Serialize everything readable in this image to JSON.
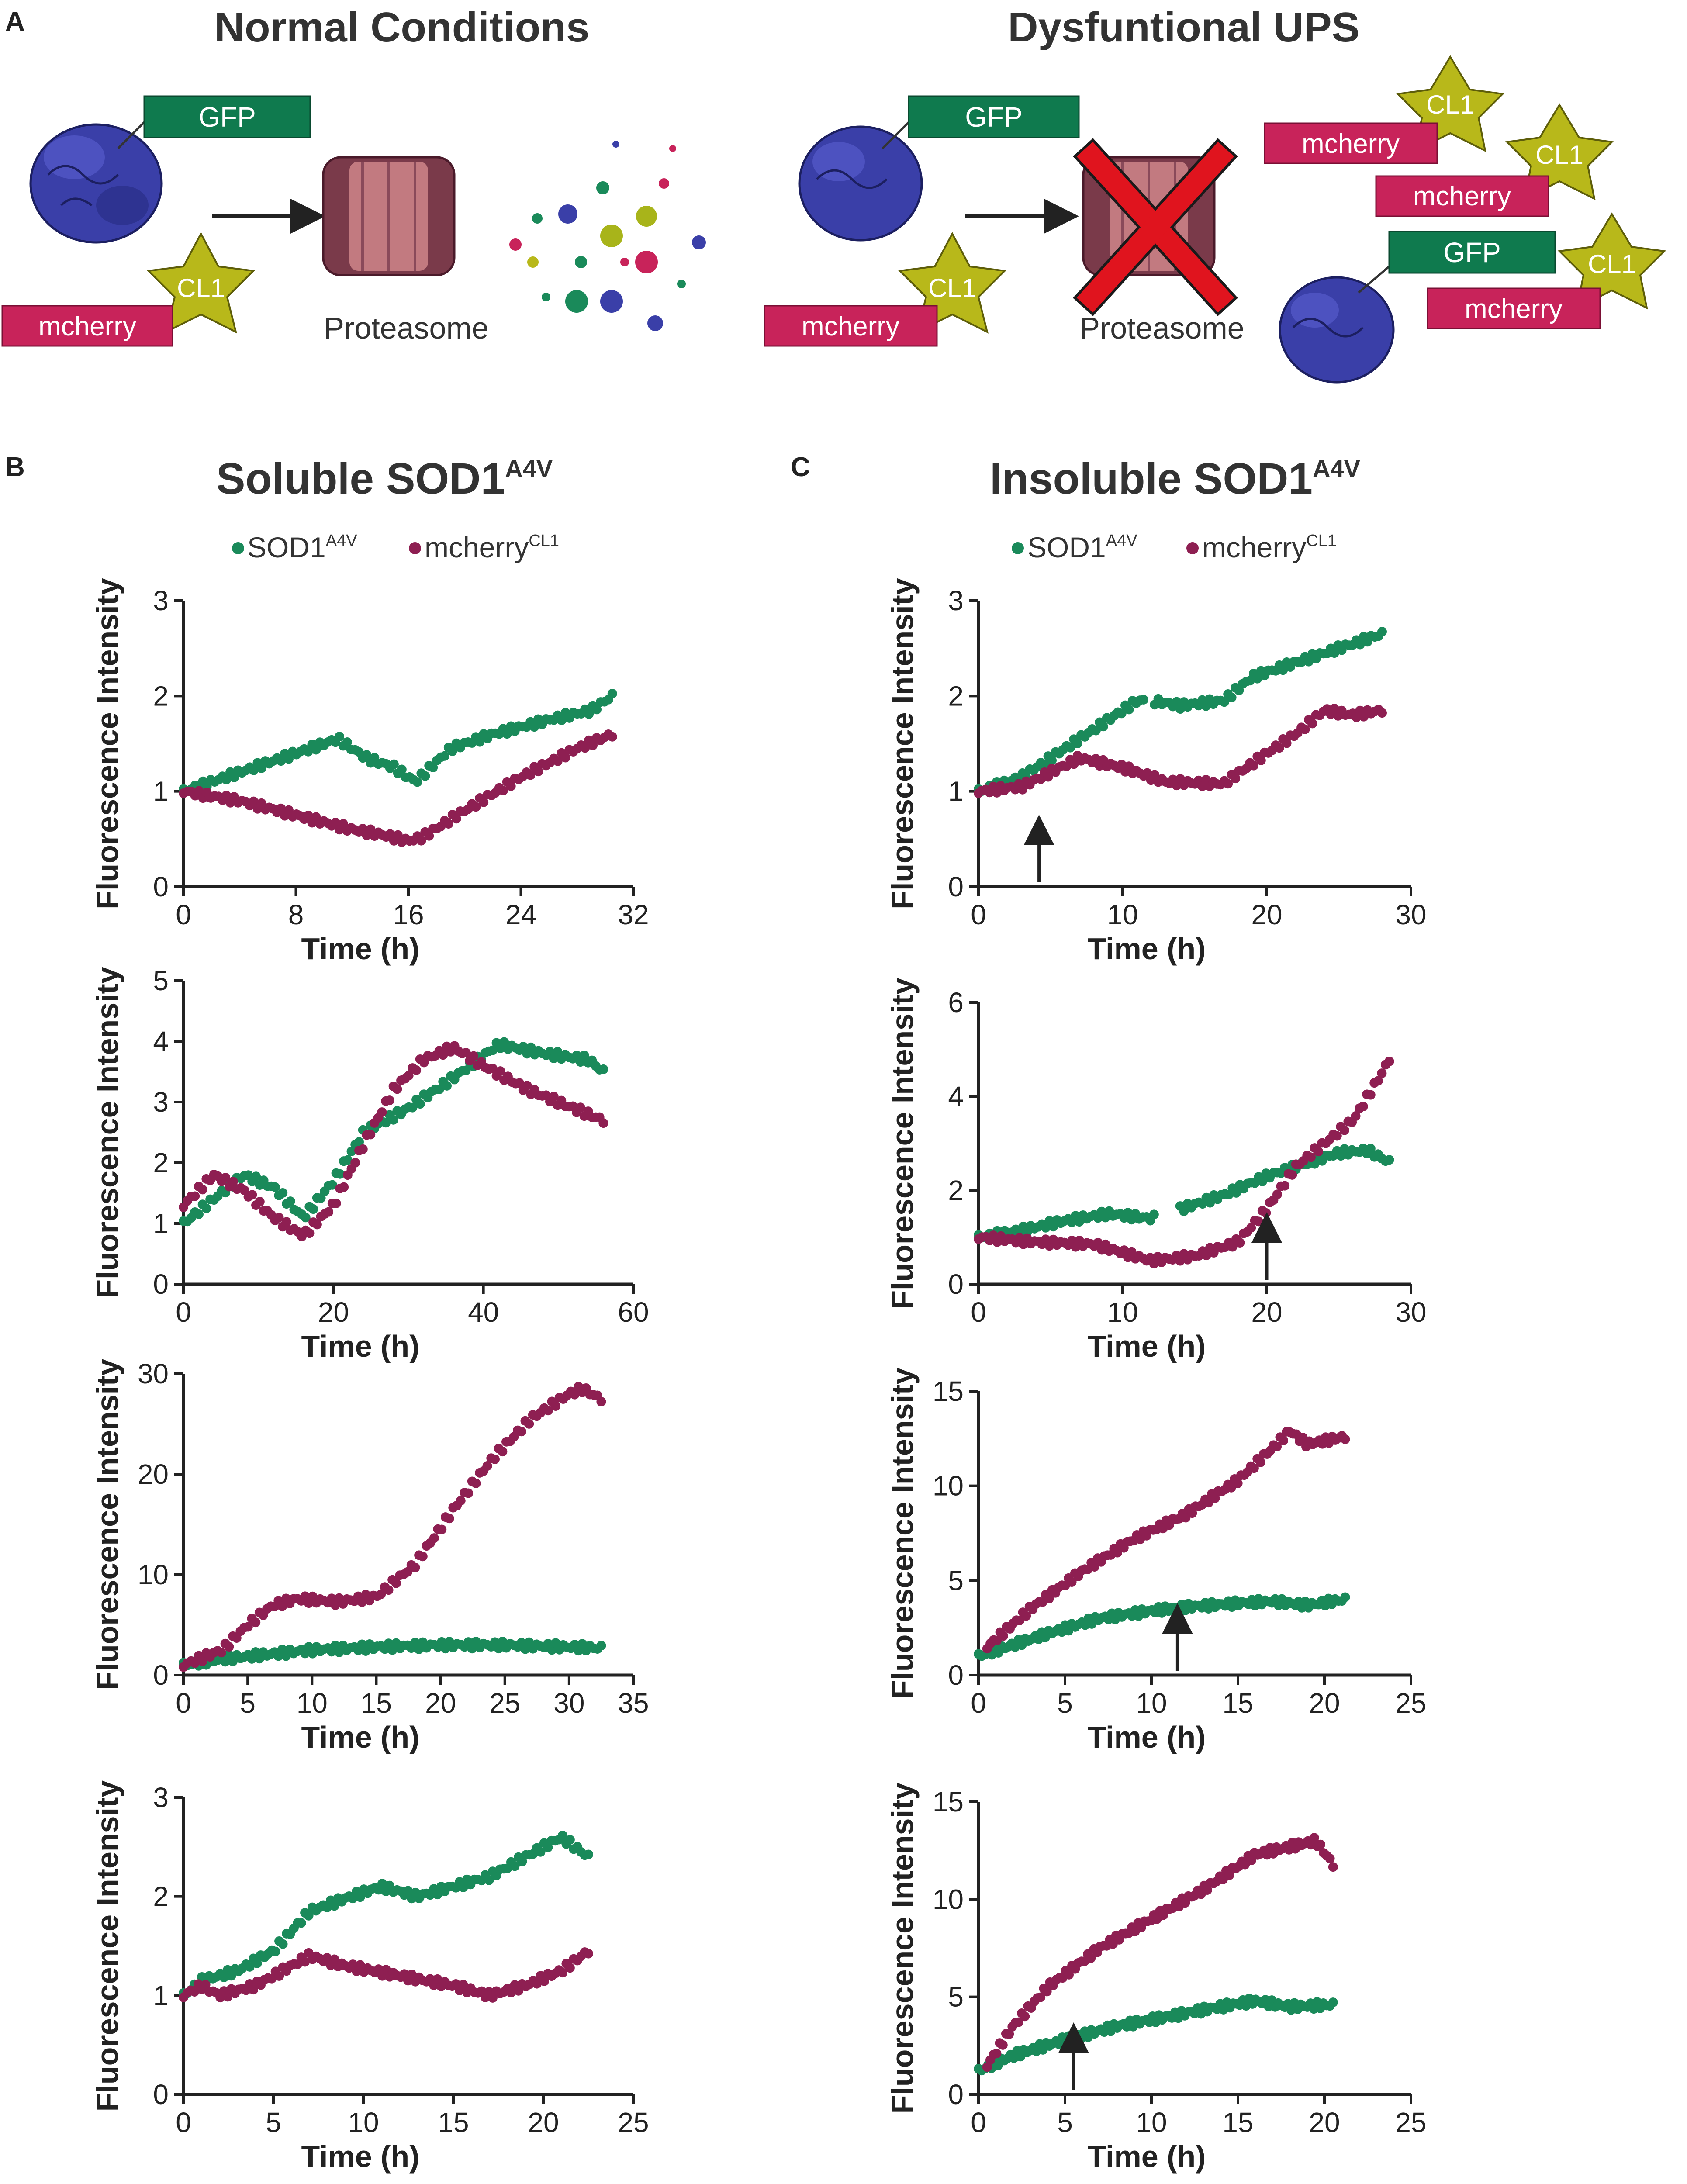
{
  "colors": {
    "green": "#1a8a5a",
    "maroon": "#8e1f52",
    "gfp_box": "#0f7a4e",
    "mcherry_box": "#c8235a",
    "cl1_star": "#b8b81a",
    "cl1_star_stroke": "#5d5d0a",
    "protein": "#3a3fa8",
    "proteasome": "#8a4a5a",
    "red_x": "#e0141e",
    "text": "#222222"
  },
  "panel_labels": {
    "a": "A",
    "b": "B",
    "c": "C"
  },
  "schematic": {
    "left_title": "Normal Conditions",
    "right_title": "Dysfuntional UPS",
    "gfp": "GFP",
    "mcherry": "mcherry",
    "cl1": "CL1",
    "proteasome": "Proteasome"
  },
  "columns": {
    "b_title": "Soluble SOD1",
    "b_title_sup": "A4V",
    "c_title": "Insoluble SOD1",
    "c_title_sup": "A4V",
    "legend_sod1": "SOD1",
    "legend_sod1_sup": "A4V",
    "legend_mcherry": "mcherry",
    "legend_mcherry_sup": "CL1"
  },
  "chart_data": [
    {
      "id": "b1",
      "type": "scatter",
      "xlabel": "Time (h)",
      "ylabel": "Fluorescence Intensity",
      "xlim": [
        0,
        32
      ],
      "ylim": [
        0,
        3
      ],
      "xticks": [
        0,
        8,
        16,
        24,
        32
      ],
      "yticks": [
        0,
        1,
        2,
        3
      ],
      "arrow_x": null,
      "series": [
        {
          "name": "SOD1A4V",
          "color": "green",
          "x_end": 30.5,
          "gaps": [],
          "points": [
            [
              0,
              1.0
            ],
            [
              4,
              1.2
            ],
            [
              8,
              1.4
            ],
            [
              11,
              1.55
            ],
            [
              13,
              1.35
            ],
            [
              15,
              1.25
            ],
            [
              16.5,
              1.1
            ],
            [
              19,
              1.45
            ],
            [
              22,
              1.6
            ],
            [
              26,
              1.75
            ],
            [
              29,
              1.85
            ],
            [
              30.5,
              2.0
            ]
          ]
        },
        {
          "name": "mcherryCL1",
          "color": "maroon",
          "x_end": 30.5,
          "gaps": [],
          "points": [
            [
              0,
              1.0
            ],
            [
              4,
              0.9
            ],
            [
              8,
              0.75
            ],
            [
              12,
              0.6
            ],
            [
              14,
              0.55
            ],
            [
              16,
              0.48
            ],
            [
              17,
              0.52
            ],
            [
              20,
              0.8
            ],
            [
              24,
              1.15
            ],
            [
              28,
              1.45
            ],
            [
              30.5,
              1.6
            ]
          ]
        }
      ]
    },
    {
      "id": "b2",
      "type": "scatter",
      "xlabel": "Time (h)",
      "ylabel": "Fluorescence Intensity",
      "xlim": [
        0,
        60
      ],
      "ylim": [
        0,
        5
      ],
      "xticks": [
        0,
        20,
        40,
        60
      ],
      "yticks": [
        0,
        1,
        2,
        3,
        4,
        5
      ],
      "arrow_x": null,
      "series": [
        {
          "name": "SOD1A4V",
          "color": "green",
          "x_end": 56,
          "gaps": [],
          "points": [
            [
              0,
              1.0
            ],
            [
              4,
              1.4
            ],
            [
              8,
              1.8
            ],
            [
              12,
              1.6
            ],
            [
              16,
              1.1
            ],
            [
              20,
              1.7
            ],
            [
              24,
              2.5
            ],
            [
              30,
              2.9
            ],
            [
              36,
              3.4
            ],
            [
              42,
              3.95
            ],
            [
              48,
              3.8
            ],
            [
              54,
              3.7
            ],
            [
              56,
              3.5
            ]
          ]
        },
        {
          "name": "mcherryCL1",
          "color": "maroon",
          "x_end": 56,
          "gaps": [],
          "points": [
            [
              0,
              1.3
            ],
            [
              4,
              1.8
            ],
            [
              8,
              1.55
            ],
            [
              12,
              1.1
            ],
            [
              16,
              0.8
            ],
            [
              20,
              1.3
            ],
            [
              24,
              2.3
            ],
            [
              28,
              3.2
            ],
            [
              32,
              3.7
            ],
            [
              36,
              3.9
            ],
            [
              40,
              3.6
            ],
            [
              46,
              3.2
            ],
            [
              52,
              2.9
            ],
            [
              56,
              2.7
            ]
          ]
        }
      ]
    },
    {
      "id": "b3",
      "type": "scatter",
      "xlabel": "Time (h)",
      "ylabel": "Fluorescence Intensity",
      "xlim": [
        0,
        35
      ],
      "ylim": [
        0,
        30
      ],
      "xticks": [
        0,
        5,
        10,
        15,
        20,
        25,
        30,
        35
      ],
      "yticks": [
        0,
        10,
        20,
        30
      ],
      "arrow_x": null,
      "series": [
        {
          "name": "SOD1A4V",
          "color": "green",
          "x_end": 32.5,
          "gaps": [],
          "points": [
            [
              0,
              1.0
            ],
            [
              3,
              1.6
            ],
            [
              6,
              2.0
            ],
            [
              10,
              2.5
            ],
            [
              15,
              2.8
            ],
            [
              20,
              3.0
            ],
            [
              25,
              3.0
            ],
            [
              30,
              2.8
            ],
            [
              32.5,
              2.7
            ]
          ]
        },
        {
          "name": "mcherryCL1",
          "color": "maroon",
          "x_end": 32.5,
          "gaps": [],
          "points": [
            [
              0,
              1.0
            ],
            [
              3,
              2.5
            ],
            [
              5,
              5.0
            ],
            [
              7,
              7.0
            ],
            [
              9,
              7.6
            ],
            [
              12,
              7.3
            ],
            [
              15,
              7.8
            ],
            [
              18,
              11.0
            ],
            [
              21,
              16.5
            ],
            [
              24,
              21.5
            ],
            [
              27,
              25.5
            ],
            [
              30,
              28.0
            ],
            [
              31,
              28.5
            ],
            [
              32.5,
              27.5
            ]
          ]
        }
      ]
    },
    {
      "id": "b4",
      "type": "scatter",
      "xlabel": "Time (h)",
      "ylabel": "Fluorescence Intensity",
      "xlim": [
        0,
        25
      ],
      "ylim": [
        0,
        3
      ],
      "xticks": [
        0,
        5,
        10,
        15,
        20,
        25
      ],
      "yticks": [
        0,
        1,
        2,
        3
      ],
      "arrow_x": null,
      "series": [
        {
          "name": "SOD1A4V",
          "color": "green",
          "x_end": 22.5,
          "gaps": [],
          "points": [
            [
              0,
              1.0
            ],
            [
              1,
              1.15
            ],
            [
              3,
              1.25
            ],
            [
              5,
              1.45
            ],
            [
              7,
              1.85
            ],
            [
              9,
              1.98
            ],
            [
              11,
              2.1
            ],
            [
              13,
              2.0
            ],
            [
              15,
              2.1
            ],
            [
              17,
              2.2
            ],
            [
              19,
              2.4
            ],
            [
              21,
              2.6
            ],
            [
              22.5,
              2.4
            ]
          ]
        },
        {
          "name": "mcherryCL1",
          "color": "maroon",
          "x_end": 22.5,
          "gaps": [],
          "points": [
            [
              0,
              1.0
            ],
            [
              1,
              1.1
            ],
            [
              2,
              1.0
            ],
            [
              4,
              1.1
            ],
            [
              6,
              1.3
            ],
            [
              7,
              1.4
            ],
            [
              9,
              1.3
            ],
            [
              12,
              1.2
            ],
            [
              15,
              1.1
            ],
            [
              17,
              1.0
            ],
            [
              19,
              1.1
            ],
            [
              21,
              1.25
            ],
            [
              22.5,
              1.45
            ]
          ]
        }
      ]
    },
    {
      "id": "c1",
      "type": "scatter",
      "xlabel": "Time (h)",
      "ylabel": "Fluorescence Intensity",
      "xlim": [
        0,
        30
      ],
      "ylim": [
        0,
        3
      ],
      "xticks": [
        0,
        10,
        20,
        30
      ],
      "yticks": [
        0,
        1,
        2,
        3
      ],
      "arrow_x": 4.2,
      "series": [
        {
          "name": "SOD1A4V",
          "color": "green",
          "x_end": 28,
          "gaps": [
            [
              11.6,
              12.2
            ]
          ],
          "points": [
            [
              0,
              1.0
            ],
            [
              3,
              1.15
            ],
            [
              5,
              1.35
            ],
            [
              8,
              1.65
            ],
            [
              11,
              1.95
            ],
            [
              12,
              1.95
            ],
            [
              14,
              1.9
            ],
            [
              17,
              1.95
            ],
            [
              19,
              2.2
            ],
            [
              22,
              2.35
            ],
            [
              25,
              2.5
            ],
            [
              28,
              2.65
            ]
          ]
        },
        {
          "name": "mcherryCL1",
          "color": "maroon",
          "x_end": 28,
          "gaps": [],
          "points": [
            [
              0,
              1.0
            ],
            [
              3,
              1.05
            ],
            [
              5,
              1.2
            ],
            [
              7,
              1.35
            ],
            [
              10,
              1.25
            ],
            [
              13,
              1.1
            ],
            [
              17,
              1.08
            ],
            [
              20,
              1.4
            ],
            [
              22,
              1.6
            ],
            [
              24,
              1.85
            ],
            [
              26,
              1.8
            ],
            [
              28,
              1.85
            ]
          ]
        }
      ]
    },
    {
      "id": "c2",
      "type": "scatter",
      "xlabel": "Time (h)",
      "ylabel": "Fluorescence Intensity",
      "xlim": [
        0,
        30
      ],
      "ylim": [
        0,
        6
      ],
      "xticks": [
        0,
        10,
        20,
        30
      ],
      "yticks": [
        0,
        2,
        4,
        6
      ],
      "arrow_x": 20,
      "series": [
        {
          "name": "SOD1A4V",
          "color": "green",
          "x_end": 28.5,
          "gaps": [
            [
              12.2,
              13.8
            ]
          ],
          "points": [
            [
              0,
              1.0
            ],
            [
              3,
              1.15
            ],
            [
              6,
              1.35
            ],
            [
              9,
              1.5
            ],
            [
              12,
              1.4
            ],
            [
              14,
              1.6
            ],
            [
              17,
              1.9
            ],
            [
              20,
              2.3
            ],
            [
              23,
              2.6
            ],
            [
              25,
              2.8
            ],
            [
              27,
              2.85
            ],
            [
              28.5,
              2.6
            ]
          ]
        },
        {
          "name": "mcherryCL1",
          "color": "maroon",
          "x_end": 28.5,
          "gaps": [],
          "points": [
            [
              0,
              1.0
            ],
            [
              4,
              0.9
            ],
            [
              8,
              0.85
            ],
            [
              12,
              0.5
            ],
            [
              15,
              0.6
            ],
            [
              18,
              0.9
            ],
            [
              20,
              1.6
            ],
            [
              22,
              2.5
            ],
            [
              24,
              3.0
            ],
            [
              26,
              3.5
            ],
            [
              28,
              4.5
            ],
            [
              28.5,
              4.8
            ]
          ]
        }
      ]
    },
    {
      "id": "c3",
      "type": "scatter",
      "xlabel": "Time (h)",
      "ylabel": "Fluorescence Intensity",
      "xlim": [
        0,
        25
      ],
      "ylim": [
        0,
        15
      ],
      "xticks": [
        0,
        5,
        10,
        15,
        20,
        25
      ],
      "yticks": [
        0,
        5,
        10,
        15
      ],
      "arrow_x": 11.5,
      "series": [
        {
          "name": "SOD1A4V",
          "color": "green",
          "x_end": 21.2,
          "gaps": [],
          "points": [
            [
              0,
              1.0
            ],
            [
              2,
              1.6
            ],
            [
              4,
              2.2
            ],
            [
              7,
              3.0
            ],
            [
              10,
              3.4
            ],
            [
              12,
              3.6
            ],
            [
              15,
              3.8
            ],
            [
              17,
              3.9
            ],
            [
              19,
              3.7
            ],
            [
              21.2,
              4.0
            ]
          ]
        },
        {
          "name": "mcherryCL1",
          "color": "maroon",
          "x_end": 21.2,
          "gaps": [],
          "points": [
            [
              0.5,
              1.5
            ],
            [
              3,
              3.5
            ],
            [
              6,
              5.5
            ],
            [
              9,
              7.2
            ],
            [
              12,
              8.5
            ],
            [
              15,
              10.3
            ],
            [
              17,
              12.0
            ],
            [
              18,
              12.9
            ],
            [
              19,
              12.2
            ],
            [
              21.2,
              12.6
            ]
          ]
        }
      ]
    },
    {
      "id": "c4",
      "type": "scatter",
      "xlabel": "Time (h)",
      "ylabel": "Fluorescence Intensity",
      "xlim": [
        0,
        25
      ],
      "ylim": [
        0,
        15
      ],
      "xticks": [
        0,
        5,
        10,
        15,
        20,
        25
      ],
      "yticks": [
        0,
        5,
        10,
        15
      ],
      "arrow_x": 5.5,
      "series": [
        {
          "name": "SOD1A4V",
          "color": "green",
          "x_end": 20.5,
          "gaps": [],
          "points": [
            [
              0,
              1.2
            ],
            [
              2,
              2.0
            ],
            [
              5,
              2.8
            ],
            [
              8,
              3.5
            ],
            [
              11,
              4.0
            ],
            [
              14,
              4.5
            ],
            [
              16,
              4.8
            ],
            [
              18,
              4.5
            ],
            [
              20.5,
              4.6
            ]
          ]
        },
        {
          "name": "mcherryCL1",
          "color": "maroon",
          "x_end": 20.5,
          "gaps": [],
          "points": [
            [
              0.5,
              1.5
            ],
            [
              2,
              3.5
            ],
            [
              4,
              5.5
            ],
            [
              7,
              7.5
            ],
            [
              10,
              9.0
            ],
            [
              13,
              10.5
            ],
            [
              16,
              12.3
            ],
            [
              18,
              12.7
            ],
            [
              19.5,
              13.0
            ],
            [
              20.5,
              11.8
            ]
          ]
        }
      ]
    }
  ]
}
